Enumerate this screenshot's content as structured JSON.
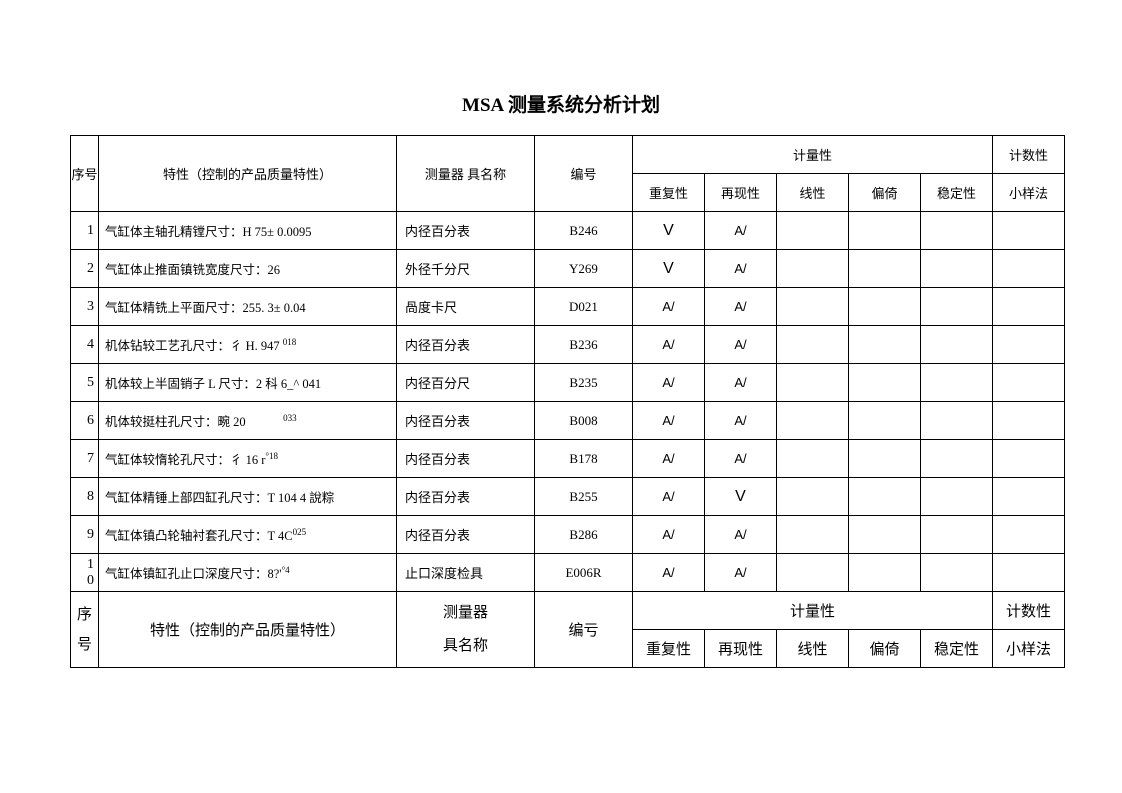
{
  "title": "MSA 测量系统分析计划",
  "header": {
    "seq": "序号",
    "characteristic": "特性（控制的产品质量特性）",
    "instrument": "测量器  具名称",
    "code": "编号",
    "quantitative": "计量性",
    "count": "计数性",
    "repeat": "重复性",
    "reproduce": "再现性",
    "linear": "线性",
    "bias": "偏倚",
    "stability": "稳定性",
    "small_sample": "小样法"
  },
  "rows": [
    {
      "seq": "1",
      "char": "气缸体主轴孔精镗尺寸：H 75± 0.0095",
      "inst": "内径百分表",
      "code": "B246",
      "m1": "V",
      "m1_big": true,
      "m2": "A/",
      "m2_big": false
    },
    {
      "seq": "2",
      "char": "气缸体止推面镇铣宽度尺寸：26",
      "inst": "外径千分尺",
      "code": "Y269",
      "m1": "V",
      "m1_big": true,
      "m2": "A/",
      "m2_big": false
    },
    {
      "seq": "3",
      "char": "气缸体精铣上平面尺寸：255. 3± 0.04",
      "inst": "咼度卡尺",
      "code": "D021",
      "m1": "A/",
      "m1_big": false,
      "m2": "A/",
      "m2_big": false
    },
    {
      "seq": "4",
      "char": "机体钻较工艺孔尺寸：彳 H. 947 ^018",
      "sup4": true,
      "inst": "内径百分表",
      "code": "B236",
      "m1": "A/",
      "m1_big": false,
      "m2": "A/",
      "m2_big": false
    },
    {
      "seq": "5",
      "char": "机体较上半固销子 L 尺寸：2 科 6_^ 041",
      "inst": "内径百分尺",
      "code": "B235",
      "m1": "A/",
      "m1_big": false,
      "m2": "A/",
      "m2_big": false
    },
    {
      "seq": "6",
      "char": "机体较挺柱孔尺寸：畹 20　　　033",
      "sup6": true,
      "inst": "内径百分表",
      "code": "B008",
      "m1": "A/",
      "m1_big": false,
      "m2": "A/",
      "m2_big": false
    },
    {
      "seq": "7",
      "char": "气缸体较惰轮孔尺寸：彳 16 r°18",
      "sup7": true,
      "inst": "内径百分表",
      "code": "B178",
      "m1": "A/",
      "m1_big": false,
      "m2": "A/",
      "m2_big": false
    },
    {
      "seq": "8",
      "char": "气缸体精锤上部四缸孔尺寸：T 104 4 說粽",
      "inst": "内径百分表",
      "code": "B255",
      "m1": "A/",
      "m1_big": false,
      "m2": "V",
      "m2_big": true
    },
    {
      "seq": "9",
      "char": "气缸体镇凸轮轴衬套孔尺寸：T 4C025",
      "sup9": true,
      "inst": "内径百分表",
      "code": "B286",
      "m1": "A/",
      "m1_big": false,
      "m2": "A/",
      "m2_big": false
    },
    {
      "seq": "10",
      "char": "气缸体镇缸孔止口深度尺寸：8?'°4",
      "sup10": true,
      "inst": "止口深度检具",
      "code": "E006R",
      "m1": "A/",
      "m1_big": false,
      "m2": "A/",
      "m2_big": false
    }
  ],
  "footer": {
    "seq": "序号",
    "characteristic": "特性（控制的产品质量特性）",
    "instrument": "测量器具名称",
    "code": "编亏",
    "quantitative": "计量性",
    "count": "计数性",
    "repeat": "重复性",
    "reproduce": "再现性",
    "linear": "线性",
    "bias": "偏倚",
    "stability": "稳定性",
    "small_sample": "小样法"
  },
  "style": {
    "border_color": "#000000",
    "background": "#ffffff",
    "title_fontsize": 19,
    "body_fontsize": 13
  }
}
